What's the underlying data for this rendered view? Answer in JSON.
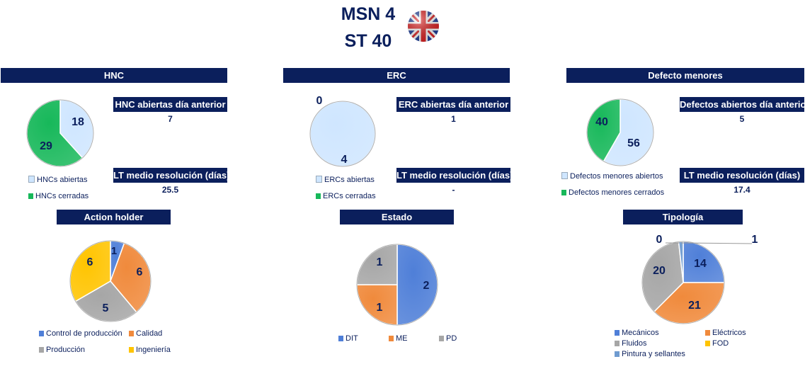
{
  "header": {
    "line1": "MSN 4",
    "line2": "ST 40",
    "flag_icon": "uk-flag-icon"
  },
  "colors": {
    "navy": "#0b1f5c",
    "light_blue": "#cfe6ff",
    "green": "#17b85a",
    "blue": "#4f7fd8",
    "orange": "#f08a3c",
    "gray": "#a6a6a6",
    "yellow": "#ffc400"
  },
  "hnc": {
    "title": "HNC",
    "kpi1_label": "HNC abiertas día anterior",
    "kpi1_value": "7",
    "kpi2_label": "LT medio resolución (días)",
    "kpi2_value": "25.5",
    "legend": [
      "HNCs abiertas",
      "HNCs cerradas"
    ],
    "chart_data": {
      "type": "pie",
      "categories": [
        "HNCs abiertas",
        "HNCs cerradas"
      ],
      "values": [
        18,
        29
      ]
    }
  },
  "erc": {
    "title": "ERC",
    "kpi1_label": "ERC abiertas día anterior",
    "kpi1_value": "1",
    "kpi2_label": "LT medio resolución (días)",
    "kpi2_value": "-",
    "legend": [
      "ERCs abiertas",
      "ERCs cerradas"
    ],
    "chart_data": {
      "type": "pie",
      "categories": [
        "ERCs abiertas",
        "ERCs cerradas"
      ],
      "values": [
        4,
        0
      ]
    }
  },
  "defectos": {
    "title": "Defecto menores",
    "kpi1_label": "Defectos abiertos día anterior",
    "kpi1_value": "5",
    "kpi2_label": "LT medio resolución (días)",
    "kpi2_value": "17.4",
    "legend": [
      "Defectos menores abiertos",
      "Defectos menores cerrados"
    ],
    "chart_data": {
      "type": "pie",
      "categories": [
        "Defectos menores abiertos",
        "Defectos menores cerrados"
      ],
      "values": [
        56,
        40
      ]
    }
  },
  "action_holder": {
    "title": "Action holder",
    "legend": [
      "Control de producción",
      "Calidad",
      "Producción",
      "Ingeniería"
    ],
    "chart_data": {
      "type": "pie",
      "categories": [
        "Control de producción",
        "Calidad",
        "Producción",
        "Ingeniería"
      ],
      "values": [
        1,
        6,
        5,
        6
      ]
    }
  },
  "estado": {
    "title": "Estado",
    "legend": [
      "DIT",
      "ME",
      "PD"
    ],
    "chart_data": {
      "type": "pie",
      "categories": [
        "DIT",
        "ME",
        "PD"
      ],
      "values": [
        2,
        1,
        1
      ]
    }
  },
  "tipologia": {
    "title": "Tipología",
    "legend": [
      "Mecánicos",
      "Eléctricos",
      "Fluidos",
      "FOD",
      "Pintura y sellantes"
    ],
    "chart_data": {
      "type": "pie",
      "categories": [
        "Mecánicos",
        "Eléctricos",
        "Fluidos",
        "FOD",
        "Pintura y sellantes"
      ],
      "values": [
        14,
        21,
        20,
        0,
        1
      ]
    }
  }
}
